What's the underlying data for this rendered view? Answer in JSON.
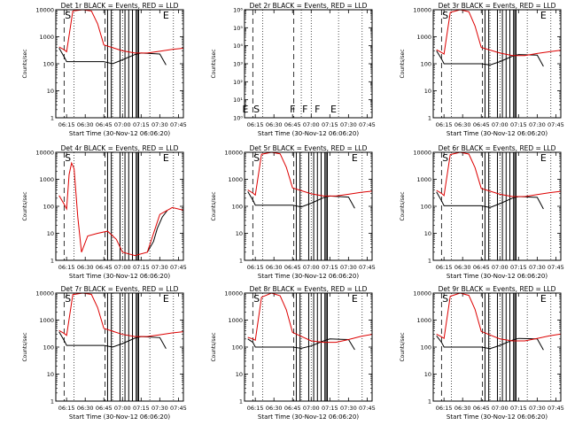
{
  "figure": {
    "event_color": "#000000",
    "lld_color": "#dd0000",
    "chart_data": [
      {
        "type": "line",
        "title": "Det 1r BLACK = Events, RED = LLD",
        "xlabel": "Start Time (30-Nov-12 06:06:20)",
        "ylabel": "Counts/sec",
        "yscale": "log",
        "ylim": [
          1,
          10000
        ],
        "grid": false,
        "x_ticks": [
          "06:15",
          "06:30",
          "06:45",
          "07:00",
          "07:15",
          "07:30",
          "07:45"
        ],
        "y_ticks": [
          "1",
          "10",
          "100",
          "1000",
          "10000"
        ],
        "markers": [
          {
            "label": "S",
            "time": "06:16"
          },
          {
            "label": "E",
            "time": "07:35"
          }
        ],
        "series": [
          {
            "name": "Events",
            "x": [
              "06:09",
              "06:13",
              "06:15",
              "06:45",
              "06:52",
              "07:00",
              "07:10",
              "07:15",
              "07:30",
              "07:35"
            ],
            "y": [
              380,
              180,
              120,
              120,
              100,
              140,
              220,
              250,
              230,
              90
            ]
          },
          {
            "name": "LLD",
            "x": [
              "06:09",
              "06:13",
              "06:15",
              "06:20",
              "06:28",
              "06:35",
              "06:40",
              "06:45",
              "07:00",
              "07:10",
              "07:20",
              "07:30",
              "07:40",
              "07:50"
            ],
            "y": [
              420,
              330,
              280,
              9000,
              10000,
              9000,
              3000,
              500,
              300,
              250,
              250,
              290,
              340,
              380
            ]
          }
        ]
      },
      {
        "type": "line",
        "title": "Det 2r BLACK = Events, RED = LLD",
        "xlabel": "Start Time (30-Nov-12 06:06:20)",
        "ylabel": "Counts/sec",
        "yscale": "log",
        "ylim": [
          1,
          1000000
        ],
        "grid": false,
        "x_ticks": [
          "06:15",
          "06:30",
          "06:45",
          "07:00",
          "07:15",
          "07:30",
          "07:45"
        ],
        "y_ticks": [
          "10⁰",
          "10¹",
          "10²",
          "10³",
          "10⁴",
          "10⁵",
          "10⁶"
        ],
        "markers": [
          {
            "label": "E",
            "time": "06:07"
          },
          {
            "label": "S",
            "time": "06:16"
          },
          {
            "label": "F",
            "time": "06:45"
          },
          {
            "label": "F",
            "time": "06:55"
          },
          {
            "label": "F",
            "time": "07:05"
          },
          {
            "label": "E",
            "time": "07:18"
          }
        ],
        "series": []
      },
      {
        "type": "line",
        "title": "Det 3r BLACK = Events, RED = LLD",
        "xlabel": "Start Time (30-Nov-12 06:06:20)",
        "ylabel": "Counts/sec",
        "yscale": "log",
        "ylim": [
          1,
          10000
        ],
        "grid": false,
        "x_ticks": [
          "06:15",
          "06:30",
          "06:45",
          "07:00",
          "07:15",
          "07:30",
          "07:45"
        ],
        "y_ticks": [
          "1",
          "10",
          "100",
          "1000",
          "10000"
        ],
        "markers": [
          {
            "label": "S",
            "time": "06:16"
          },
          {
            "label": "E",
            "time": "07:35"
          }
        ],
        "series": [
          {
            "name": "Events",
            "x": [
              "06:09",
              "06:13",
              "06:15",
              "06:45",
              "06:52",
              "07:00",
              "07:10",
              "07:15",
              "07:30",
              "07:35"
            ],
            "y": [
              300,
              150,
              100,
              100,
              90,
              120,
              190,
              220,
              210,
              80
            ]
          },
          {
            "name": "LLD",
            "x": [
              "06:09",
              "06:13",
              "06:15",
              "06:20",
              "06:28",
              "06:35",
              "06:40",
              "06:45",
              "07:00",
              "07:10",
              "07:20",
              "07:30",
              "07:40",
              "07:50"
            ],
            "y": [
              330,
              260,
              230,
              8000,
              10000,
              8500,
              2500,
              400,
              250,
              200,
              200,
              240,
              280,
              320
            ]
          }
        ]
      },
      {
        "type": "line",
        "title": "Det 4r BLACK = Events, RED = LLD",
        "xlabel": "Start Time (30-Nov-12 06:06:20)",
        "ylabel": "Counts/sec",
        "yscale": "log",
        "ylim": [
          1,
          10000
        ],
        "grid": false,
        "x_ticks": [
          "06:15",
          "06:30",
          "06:45",
          "07:00",
          "07:15",
          "07:30",
          "07:45"
        ],
        "y_ticks": [
          "1",
          "10",
          "100",
          "1000",
          "10000"
        ],
        "markers": [
          {
            "label": "S",
            "time": "06:16"
          },
          {
            "label": "E",
            "time": "07:35"
          }
        ],
        "series": [
          {
            "name": "Events",
            "x": [
              "07:20",
              "07:25",
              "07:28",
              "07:32",
              "07:36"
            ],
            "y": [
              2,
              5,
              15,
              40,
              70
            ]
          },
          {
            "name": "LLD",
            "x": [
              "06:09",
              "06:13",
              "06:15",
              "06:17",
              "06:19",
              "06:21",
              "06:24",
              "06:27",
              "06:32",
              "06:40",
              "06:48",
              "06:55",
              "07:00",
              "07:10",
              "07:20",
              "07:30",
              "07:40",
              "07:50"
            ],
            "y": [
              250,
              120,
              80,
              1500,
              4000,
              2500,
              40,
              2,
              8,
              10,
              12,
              6,
              2,
              1.5,
              2,
              50,
              90,
              70
            ]
          }
        ]
      },
      {
        "type": "line",
        "title": "Det 5r BLACK = Events, RED = LLD",
        "xlabel": "Start Time (30-Nov-12 06:06:20)",
        "ylabel": "Counts/sec",
        "yscale": "log",
        "ylim": [
          1,
          10000
        ],
        "grid": false,
        "x_ticks": [
          "06:15",
          "06:30",
          "06:45",
          "07:00",
          "07:15",
          "07:30",
          "07:45"
        ],
        "y_ticks": [
          "1",
          "10",
          "100",
          "1000",
          "10000"
        ],
        "markers": [
          {
            "label": "S",
            "time": "06:16"
          },
          {
            "label": "E",
            "time": "07:35"
          }
        ],
        "series": [
          {
            "name": "Events",
            "x": [
              "06:09",
              "06:13",
              "06:15",
              "06:45",
              "06:52",
              "07:00",
              "07:10",
              "07:15",
              "07:30",
              "07:35"
            ],
            "y": [
              350,
              170,
              110,
              110,
              95,
              130,
              210,
              240,
              220,
              85
            ]
          },
          {
            "name": "LLD",
            "x": [
              "06:09",
              "06:13",
              "06:15",
              "06:20",
              "06:28",
              "06:35",
              "06:40",
              "06:45",
              "07:00",
              "07:10",
              "07:20",
              "07:30",
              "07:40",
              "07:50"
            ],
            "y": [
              400,
              310,
              260,
              8500,
              10000,
              8800,
              2800,
              480,
              290,
              240,
              240,
              280,
              330,
              370
            ]
          }
        ]
      },
      {
        "type": "line",
        "title": "Det 6r BLACK = Events, RED = LLD",
        "xlabel": "Start Time (30-Nov-12 06:06:20)",
        "ylabel": "Counts/sec",
        "yscale": "log",
        "ylim": [
          1,
          10000
        ],
        "grid": false,
        "x_ticks": [
          "06:15",
          "06:30",
          "06:45",
          "07:00",
          "07:15",
          "07:30",
          "07:45"
        ],
        "y_ticks": [
          "1",
          "10",
          "100",
          "1000",
          "10000"
        ],
        "markers": [
          {
            "label": "S",
            "time": "06:16"
          },
          {
            "label": "E",
            "time": "07:35"
          }
        ],
        "series": [
          {
            "name": "Events",
            "x": [
              "06:09",
              "06:13",
              "06:15",
              "06:45",
              "06:52",
              "07:00",
              "07:10",
              "07:15",
              "07:30",
              "07:35"
            ],
            "y": [
              340,
              160,
              105,
              105,
              90,
              125,
              200,
              230,
              215,
              80
            ]
          },
          {
            "name": "LLD",
            "x": [
              "06:09",
              "06:13",
              "06:15",
              "06:20",
              "06:28",
              "06:35",
              "06:40",
              "06:45",
              "07:00",
              "07:10",
              "07:20",
              "07:30",
              "07:40",
              "07:50"
            ],
            "y": [
              390,
              300,
              250,
              8200,
              10000,
              8600,
              2700,
              460,
              280,
              230,
              230,
              270,
              320,
              360
            ]
          }
        ]
      },
      {
        "type": "line",
        "title": "Det 7r BLACK = Events, RED = LLD",
        "xlabel": "Start Time (30-Nov-12 06:06:20)",
        "ylabel": "Counts/sec",
        "yscale": "log",
        "ylim": [
          1,
          10000
        ],
        "grid": false,
        "x_ticks": [
          "06:15",
          "06:30",
          "06:45",
          "07:00",
          "07:15",
          "07:30",
          "07:45"
        ],
        "y_ticks": [
          "1",
          "10",
          "100",
          "1000",
          "10000"
        ],
        "markers": [
          {
            "label": "S",
            "time": "06:16"
          },
          {
            "label": "E",
            "time": "07:35"
          }
        ],
        "series": [
          {
            "name": "Events",
            "x": [
              "06:09",
              "06:13",
              "06:15",
              "06:45",
              "06:52",
              "07:00",
              "07:10",
              "07:15",
              "07:30",
              "07:35"
            ],
            "y": [
              370,
              175,
              115,
              115,
              100,
              135,
              215,
              245,
              225,
              88
            ]
          },
          {
            "name": "LLD",
            "x": [
              "06:09",
              "06:13",
              "06:15",
              "06:20",
              "06:28",
              "06:35",
              "06:40",
              "06:45",
              "07:00",
              "07:10",
              "07:20",
              "07:30",
              "07:40",
              "07:50"
            ],
            "y": [
              410,
              320,
              270,
              8800,
              10000,
              8900,
              2900,
              490,
              295,
              245,
              245,
              285,
              335,
              375
            ]
          }
        ]
      },
      {
        "type": "line",
        "title": "Det 8r BLACK = Events, RED = LLD",
        "xlabel": "Start Time (30-Nov-12 06:06:20)",
        "ylabel": "Counts/sec",
        "yscale": "log",
        "ylim": [
          1,
          10000
        ],
        "grid": false,
        "x_ticks": [
          "06:15",
          "06:30",
          "06:45",
          "07:00",
          "07:15",
          "07:30",
          "07:45"
        ],
        "y_ticks": [
          "1",
          "10",
          "100",
          "1000",
          "10000"
        ],
        "markers": [
          {
            "label": "S",
            "time": "06:16"
          },
          {
            "label": "E",
            "time": "07:35"
          }
        ],
        "series": [
          {
            "name": "Events",
            "x": [
              "06:09",
              "06:13",
              "06:15",
              "06:45",
              "06:52",
              "07:00",
              "07:10",
              "07:15",
              "07:30",
              "07:35"
            ],
            "y": [
              200,
              150,
              100,
              100,
              90,
              110,
              170,
              200,
              190,
              80
            ]
          },
          {
            "name": "LLD",
            "x": [
              "06:09",
              "06:13",
              "06:15",
              "06:20",
              "06:28",
              "06:35",
              "06:40",
              "06:45",
              "07:00",
              "07:10",
              "07:20",
              "07:30",
              "07:40",
              "07:50"
            ],
            "y": [
              230,
              200,
              180,
              7000,
              10000,
              8000,
              2400,
              350,
              170,
              150,
              150,
              190,
              250,
              300
            ]
          }
        ]
      },
      {
        "type": "line",
        "title": "Det 9r BLACK = Events, RED = LLD",
        "xlabel": "Start Time (30-Nov-12 06:06:20)",
        "ylabel": "Counts/sec",
        "yscale": "log",
        "ylim": [
          1,
          10000
        ],
        "grid": false,
        "x_ticks": [
          "06:15",
          "06:30",
          "06:45",
          "07:00",
          "07:15",
          "07:30",
          "07:45"
        ],
        "y_ticks": [
          "1",
          "10",
          "100",
          "1000",
          "10000"
        ],
        "markers": [
          {
            "label": "S",
            "time": "06:16"
          },
          {
            "label": "E",
            "time": "07:35"
          }
        ],
        "series": [
          {
            "name": "Events",
            "x": [
              "06:09",
              "06:13",
              "06:15",
              "06:45",
              "06:52",
              "07:00",
              "07:10",
              "07:15",
              "07:30",
              "07:35"
            ],
            "y": [
              260,
              150,
              100,
              100,
              88,
              115,
              180,
              210,
              200,
              78
            ]
          },
          {
            "name": "LLD",
            "x": [
              "06:09",
              "06:13",
              "06:15",
              "06:20",
              "06:28",
              "06:35",
              "06:40",
              "06:45",
              "07:00",
              "07:10",
              "07:20",
              "07:30",
              "07:40",
              "07:50"
            ],
            "y": [
              300,
              240,
              210,
              7600,
              10000,
              8200,
              2500,
              380,
              200,
              170,
              170,
              210,
              260,
              310
            ]
          }
        ]
      }
    ]
  }
}
